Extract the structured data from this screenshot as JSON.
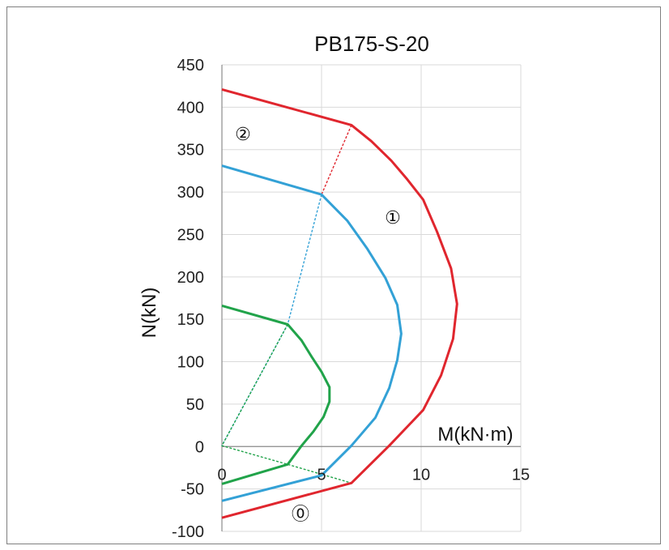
{
  "chart_data": {
    "type": "line",
    "title": "PB175-S-20",
    "xlabel": "M(kN·m)",
    "ylabel": "N(kN)",
    "xlim": [
      0,
      15
    ],
    "ylim": [
      -100,
      450
    ],
    "xticks": [
      "0",
      "5",
      "10",
      "15"
    ],
    "yticks": [
      "-100",
      "-50",
      "0",
      "50",
      "100",
      "150",
      "200",
      "250",
      "300",
      "350",
      "400",
      "450"
    ],
    "grid": true,
    "colors": {
      "red": "#e0262e",
      "blue": "#33a1d6",
      "green": "#21a34a",
      "grid": "#d9d9d9"
    },
    "region_labels": [
      "①",
      "②",
      "⓪"
    ],
    "series": [
      {
        "color": "#e0262e",
        "style": "solid",
        "points": [
          [
            0,
            421
          ],
          [
            6.5,
            379
          ],
          [
            7.5,
            360
          ],
          [
            8.5,
            337
          ],
          [
            9.3,
            315
          ],
          [
            10.1,
            291
          ],
          [
            10.8,
            253
          ],
          [
            11.5,
            210
          ],
          [
            11.8,
            168
          ],
          [
            11.6,
            127
          ],
          [
            11.0,
            84
          ],
          [
            10.1,
            43
          ],
          [
            8.4,
            1
          ],
          [
            6.5,
            -43
          ],
          [
            0,
            -84
          ]
        ]
      },
      {
        "color": "#33a1d6",
        "style": "solid",
        "points": [
          [
            0,
            331
          ],
          [
            5.0,
            297
          ],
          [
            6.3,
            266
          ],
          [
            7.3,
            233
          ],
          [
            8.2,
            199
          ],
          [
            8.8,
            167
          ],
          [
            9.0,
            133
          ],
          [
            8.8,
            102
          ],
          [
            8.4,
            69
          ],
          [
            7.7,
            34
          ],
          [
            6.5,
            1
          ],
          [
            5.0,
            -34
          ],
          [
            0,
            -64
          ]
        ]
      },
      {
        "color": "#21a34a",
        "style": "solid",
        "points": [
          [
            0,
            166
          ],
          [
            3.3,
            144
          ],
          [
            4.0,
            125
          ],
          [
            4.5,
            106
          ],
          [
            5.0,
            88
          ],
          [
            5.4,
            70
          ],
          [
            5.4,
            53
          ],
          [
            5.1,
            35
          ],
          [
            4.6,
            18
          ],
          [
            4.0,
            1
          ],
          [
            3.3,
            -21
          ],
          [
            0,
            -44
          ]
        ]
      },
      {
        "color": "#e0262e",
        "style": "dashed",
        "points": [
          [
            6.5,
            379
          ],
          [
            5.0,
            297
          ]
        ]
      },
      {
        "color": "#33a1d6",
        "style": "dashed",
        "points": [
          [
            5.0,
            297
          ],
          [
            3.3,
            144
          ],
          [
            0,
            1
          ]
        ]
      },
      {
        "color": "#21a34a",
        "style": "dashed",
        "points": [
          [
            3.3,
            144
          ],
          [
            0,
            1
          ],
          [
            3.3,
            -21
          ],
          [
            6.5,
            -43
          ]
        ]
      }
    ]
  }
}
